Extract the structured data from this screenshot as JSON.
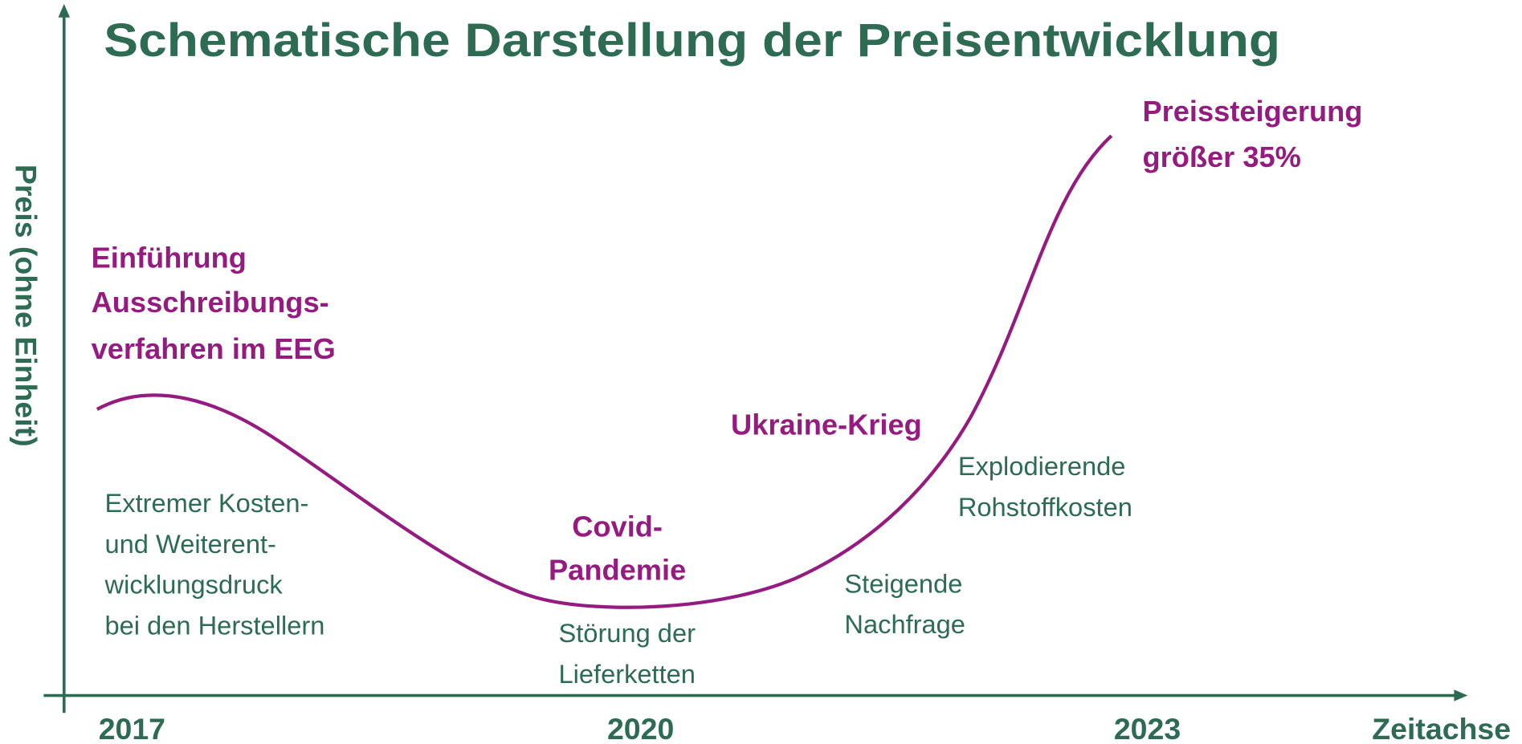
{
  "title": "Schematische Darstellung der Preisentwicklung",
  "y_axis_label": "Preis (ohne Einheit)",
  "x_axis_label": "Zeitachse",
  "x_labels": [
    "2017",
    "2020",
    "2023"
  ],
  "events": [
    {
      "title_lines": [
        "Einführung",
        "Ausschreibungs-",
        "verfahren im EEG"
      ],
      "detail_lines": [
        "Extremer Kosten-",
        "und Weiterent-",
        "wicklungsdruck",
        "bei den Herstellern"
      ]
    },
    {
      "title_lines": [
        "Covid-",
        "Pandemie"
      ],
      "detail_lines": [
        "Störung der",
        "Lieferketten"
      ]
    },
    {
      "title_lines": [],
      "detail_lines": [
        "Steigende",
        "Nachfrage"
      ]
    },
    {
      "title_lines": [
        "Ukraine-Krieg"
      ],
      "detail_lines": [
        "Explodierende",
        "Rohstoffkosten"
      ]
    },
    {
      "title_lines": [
        "Preissteigerung",
        "größer 35%"
      ],
      "detail_lines": []
    }
  ]
}
